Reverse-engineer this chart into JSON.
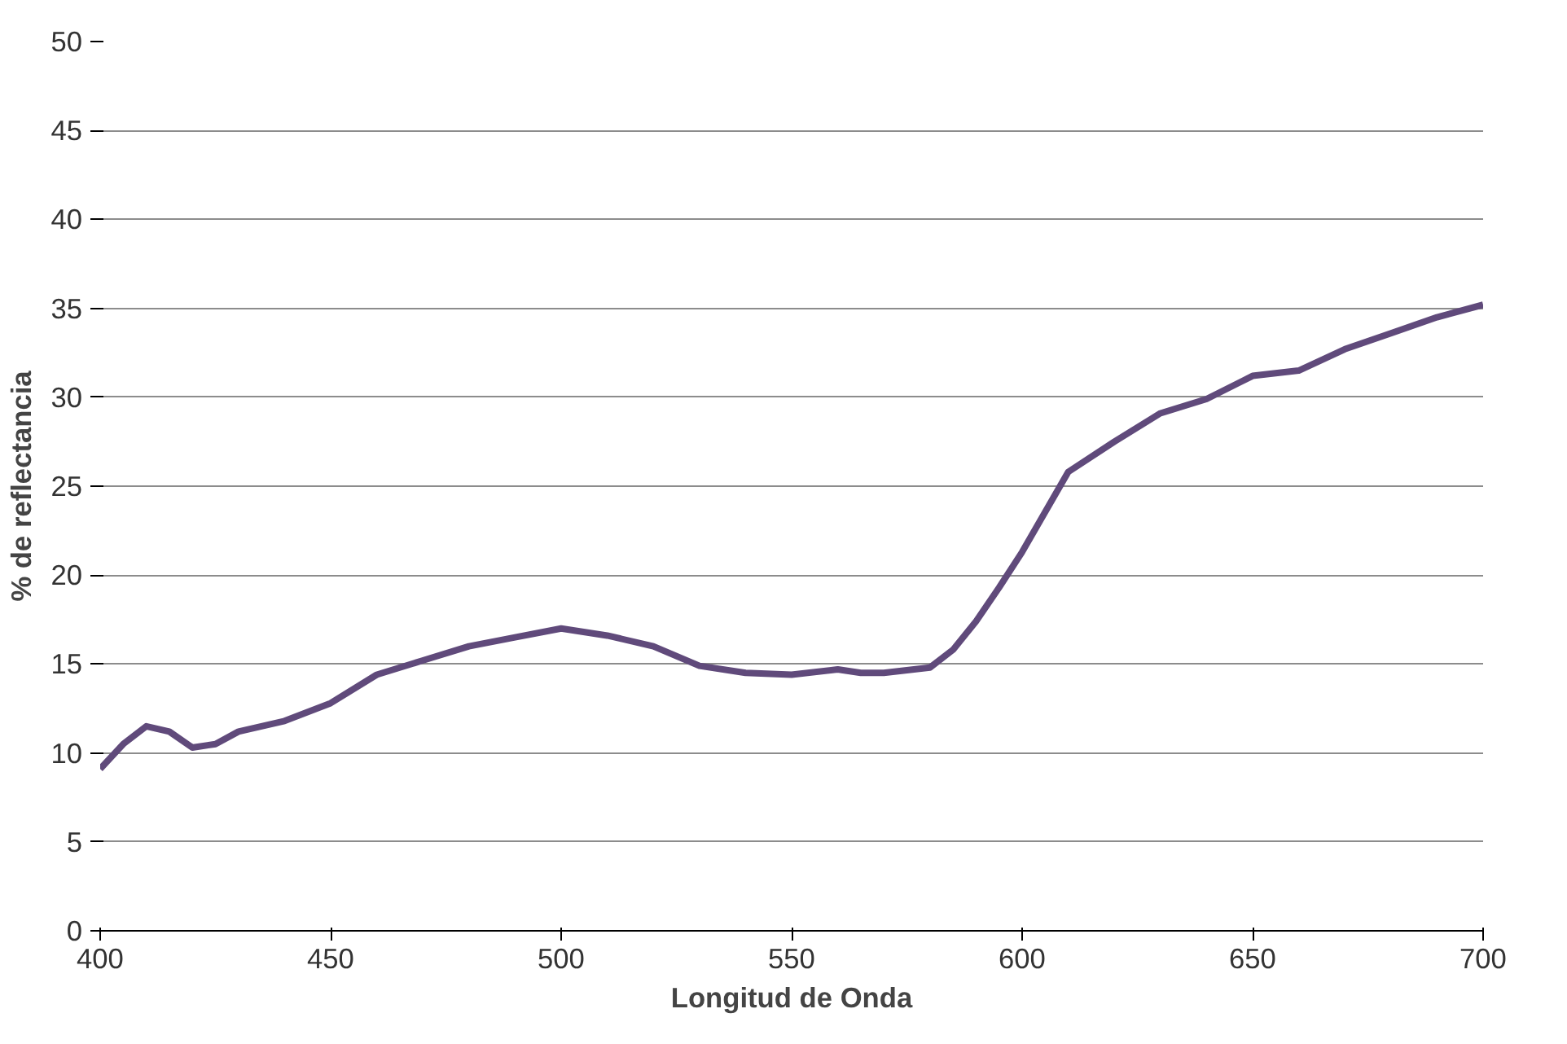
{
  "chart_data": {
    "type": "line",
    "xlabel": "Longitud de Onda",
    "ylabel": "% de reflectancia",
    "x": [
      400,
      405,
      410,
      415,
      420,
      425,
      430,
      440,
      450,
      460,
      470,
      480,
      490,
      500,
      510,
      520,
      530,
      540,
      550,
      560,
      565,
      570,
      580,
      585,
      590,
      595,
      600,
      610,
      620,
      630,
      640,
      650,
      660,
      670,
      680,
      690,
      700
    ],
    "series": [
      {
        "color": "#604a7b",
        "values": [
          9.1,
          10.5,
          11.5,
          11.2,
          10.3,
          10.5,
          11.2,
          11.8,
          12.8,
          14.4,
          15.2,
          16.0,
          16.5,
          17.0,
          16.6,
          16.0,
          14.9,
          14.5,
          14.4,
          14.7,
          14.5,
          14.5,
          14.8,
          15.8,
          17.4,
          19.3,
          21.3,
          25.8,
          27.5,
          29.1,
          29.9,
          31.2,
          31.5,
          32.7,
          33.6,
          34.5,
          35.2
        ]
      }
    ],
    "xlim": [
      400,
      700
    ],
    "xticks": [
      400,
      450,
      500,
      550,
      600,
      650,
      700
    ],
    "ylim": [
      0,
      50
    ],
    "yticks": [
      0,
      5,
      10,
      15,
      20,
      25,
      30,
      35,
      40,
      45,
      50
    ],
    "grid": "y",
    "marker": "none",
    "line_style": "solid"
  }
}
